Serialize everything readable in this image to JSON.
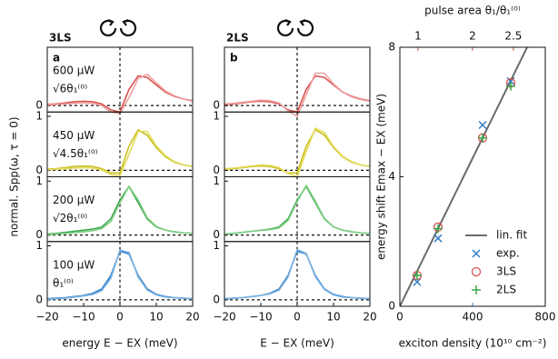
{
  "chart_data": [
    {
      "type": "line",
      "title": "3LS",
      "panel_label": "a",
      "ylabel": "normal. Spp(ω, τ = 0)",
      "xlabel": "energy E − EX (meV)",
      "xlim": [
        -20,
        20
      ],
      "xticks": [
        {
          "value": -20,
          "label": "−20"
        },
        {
          "value": -10,
          "label": "−10"
        },
        0,
        10,
        20
      ],
      "x": [
        -20,
        -17.5,
        -15,
        -12.5,
        -10,
        -7.5,
        -5,
        -2.5,
        0,
        2.5,
        5,
        7.5,
        10,
        12.5,
        15,
        17.5,
        20
      ],
      "subplots": [
        {
          "ylim": [
            -0.12,
            1.08
          ],
          "yticks": [
            0
          ],
          "color": "#d9534f",
          "annotations": [
            "600 μW",
            "√6θ₁⁽⁰⁾"
          ],
          "series": [
            {
              "color": "#d9534f",
              "values": [
                0.02,
                0.03,
                0.05,
                0.07,
                0.08,
                0.07,
                0.03,
                -0.08,
                -0.12,
                0.3,
                0.55,
                0.52,
                0.38,
                0.25,
                0.17,
                0.12,
                0.09
              ]
            },
            {
              "color": "#eea0a0",
              "values": [
                0.01,
                0.02,
                0.03,
                0.04,
                0.05,
                0.04,
                0.0,
                -0.12,
                -0.15,
                0.15,
                0.5,
                0.58,
                0.42,
                0.27,
                0.18,
                0.12,
                0.08
              ]
            }
          ]
        },
        {
          "ylim": [
            -0.12,
            1.08
          ],
          "yticks": [
            0,
            1
          ],
          "color": "#c9bf1c",
          "annotations": [
            "450 μW",
            "√4.5θ₁⁽⁰⁾"
          ],
          "series": [
            {
              "color": "#c9bf1c",
              "values": [
                0.02,
                0.03,
                0.05,
                0.07,
                0.08,
                0.07,
                0.03,
                -0.05,
                -0.05,
                0.45,
                0.75,
                0.65,
                0.42,
                0.25,
                0.15,
                0.1,
                0.07
              ]
            },
            {
              "color": "#e3dc5c",
              "values": [
                0.01,
                0.02,
                0.03,
                0.04,
                0.05,
                0.04,
                0.01,
                -0.08,
                -0.1,
                0.3,
                0.72,
                0.72,
                0.45,
                0.27,
                0.16,
                0.1,
                0.07
              ]
            }
          ]
        },
        {
          "ylim": [
            -0.12,
            1.08
          ],
          "yticks": [
            0,
            1
          ],
          "color": "#3aa64a",
          "annotations": [
            "200 μW",
            "√2θ₁⁽⁰⁾"
          ],
          "series": [
            {
              "color": "#3aa64a",
              "values": [
                0.02,
                0.03,
                0.05,
                0.07,
                0.09,
                0.11,
                0.15,
                0.3,
                0.65,
                0.9,
                0.6,
                0.3,
                0.15,
                0.09,
                0.06,
                0.04,
                0.03
              ]
            },
            {
              "color": "#82cf86",
              "values": [
                0.01,
                0.02,
                0.03,
                0.04,
                0.06,
                0.08,
                0.12,
                0.25,
                0.6,
                0.9,
                0.65,
                0.32,
                0.16,
                0.09,
                0.06,
                0.04,
                0.03
              ]
            }
          ]
        },
        {
          "ylim": [
            -0.12,
            1.08
          ],
          "yticks": [
            0,
            1
          ],
          "color": "#2f7ec8",
          "annotations": [
            "100 μW",
            "θ₁⁽⁰⁾"
          ],
          "series": [
            {
              "color": "#2f7ec8",
              "values": [
                0.02,
                0.03,
                0.04,
                0.06,
                0.08,
                0.12,
                0.2,
                0.45,
                0.9,
                0.85,
                0.45,
                0.2,
                0.1,
                0.06,
                0.04,
                0.03,
                0.02
              ]
            },
            {
              "color": "#7ab2e2",
              "values": [
                0.01,
                0.02,
                0.03,
                0.05,
                0.07,
                0.1,
                0.17,
                0.4,
                0.92,
                0.88,
                0.42,
                0.18,
                0.09,
                0.05,
                0.04,
                0.03,
                0.02
              ]
            }
          ]
        }
      ]
    },
    {
      "type": "line",
      "title": "2LS",
      "panel_label": "b",
      "xlabel": "E − EX (meV)",
      "xlim": [
        -20,
        20
      ],
      "xticks": [
        {
          "value": -20,
          "label": "−20"
        },
        {
          "value": -10,
          "label": "−10"
        },
        0,
        10,
        20
      ],
      "x": [
        -20,
        -17.5,
        -15,
        -12.5,
        -10,
        -7.5,
        -5,
        -2.5,
        0,
        2.5,
        5,
        7.5,
        10,
        12.5,
        15,
        17.5,
        20
      ],
      "subplots": [
        {
          "ylim": [
            -0.12,
            1.08
          ],
          "yticks": [
            0
          ],
          "series": [
            {
              "color": "#d9534f",
              "values": [
                0.02,
                0.03,
                0.05,
                0.07,
                0.08,
                0.07,
                0.03,
                -0.08,
                -0.12,
                0.3,
                0.55,
                0.52,
                0.38,
                0.25,
                0.17,
                0.12,
                0.09
              ]
            },
            {
              "color": "#eea0a0",
              "values": [
                0.03,
                0.04,
                0.06,
                0.08,
                0.1,
                0.09,
                0.05,
                -0.1,
                -0.2,
                0.2,
                0.6,
                0.6,
                0.4,
                0.25,
                0.16,
                0.11,
                0.08
              ]
            }
          ]
        },
        {
          "ylim": [
            -0.12,
            1.08
          ],
          "yticks": [
            0,
            1
          ],
          "series": [
            {
              "color": "#c9bf1c",
              "values": [
                0.02,
                0.03,
                0.05,
                0.07,
                0.08,
                0.07,
                0.03,
                -0.05,
                -0.05,
                0.45,
                0.75,
                0.65,
                0.42,
                0.25,
                0.15,
                0.1,
                0.07
              ]
            },
            {
              "color": "#e3dc5c",
              "values": [
                0.03,
                0.04,
                0.06,
                0.08,
                0.1,
                0.09,
                0.05,
                -0.06,
                -0.12,
                0.35,
                0.78,
                0.7,
                0.44,
                0.26,
                0.16,
                0.1,
                0.07
              ]
            }
          ]
        },
        {
          "ylim": [
            -0.12,
            1.08
          ],
          "yticks": [
            0,
            1
          ],
          "series": [
            {
              "color": "#3aa64a",
              "values": [
                0.02,
                0.03,
                0.05,
                0.07,
                0.09,
                0.11,
                0.15,
                0.3,
                0.65,
                0.9,
                0.6,
                0.3,
                0.15,
                0.09,
                0.06,
                0.04,
                0.03
              ]
            },
            {
              "color": "#82cf86",
              "values": [
                0.02,
                0.03,
                0.05,
                0.07,
                0.09,
                0.1,
                0.13,
                0.27,
                0.62,
                0.92,
                0.63,
                0.31,
                0.15,
                0.09,
                0.06,
                0.04,
                0.03
              ]
            }
          ]
        },
        {
          "ylim": [
            -0.12,
            1.08
          ],
          "yticks": [
            0,
            1
          ],
          "series": [
            {
              "color": "#2f7ec8",
              "values": [
                0.02,
                0.03,
                0.04,
                0.06,
                0.08,
                0.12,
                0.2,
                0.45,
                0.9,
                0.85,
                0.45,
                0.2,
                0.1,
                0.06,
                0.04,
                0.03,
                0.02
              ]
            },
            {
              "color": "#7ab2e2",
              "values": [
                0.02,
                0.03,
                0.04,
                0.06,
                0.08,
                0.11,
                0.18,
                0.42,
                0.93,
                0.86,
                0.43,
                0.19,
                0.09,
                0.05,
                0.04,
                0.03,
                0.02
              ]
            }
          ]
        }
      ]
    },
    {
      "type": "scatter",
      "ylabel": "energy shift Emax − EX (meV)",
      "xlabel": "exciton density (10¹⁰ cm⁻²)",
      "xlabel_color": "#2f7ec8",
      "xlim": [
        0,
        800
      ],
      "xticks": [
        0,
        400,
        800
      ],
      "ylim": [
        0,
        8
      ],
      "yticks": [
        0,
        4,
        8
      ],
      "x2label": "pulse area θ₁/θ₁⁽⁰⁾",
      "x2label_color": "#d9534f",
      "x2scale": "square",
      "x2lim": [
        0,
        2.83
      ],
      "x2ticks": [
        1,
        2,
        2.5
      ],
      "legend": "lower right",
      "series": [
        {
          "name": "lin. fit",
          "marker": "line",
          "color": "#6b6b6b",
          "x": [
            0,
            700
          ],
          "values": [
            0,
            8
          ]
        },
        {
          "name": "exp.",
          "marker": "x",
          "color": "#2f7ec8",
          "x": [
            95,
            210,
            455,
            610
          ],
          "values": [
            0.75,
            2.1,
            5.6,
            6.95
          ]
        },
        {
          "name": "3LS",
          "marker": "circle",
          "color": "#d9534f",
          "x": [
            95,
            210,
            455,
            610
          ],
          "values": [
            0.95,
            2.45,
            5.2,
            6.9
          ]
        },
        {
          "name": "2LS",
          "marker": "plus",
          "color": "#3aa64a",
          "x": [
            95,
            210,
            455,
            610
          ],
          "values": [
            0.95,
            2.4,
            5.2,
            6.8
          ]
        }
      ]
    }
  ]
}
